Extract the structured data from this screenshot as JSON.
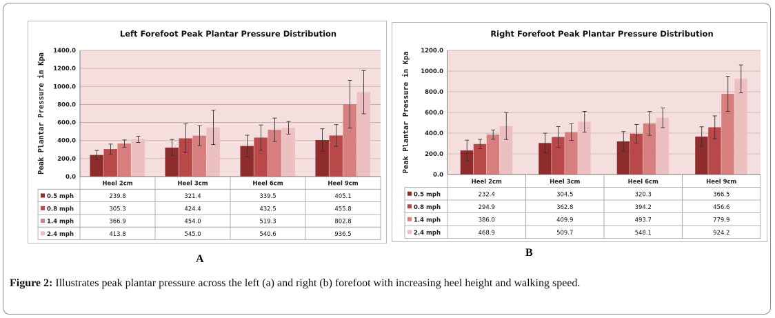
{
  "figure": {
    "caption_label": "Figure 2:",
    "caption_text": " Illustrates peak plantar pressure across the left (a) and right (b) forefoot with increasing heel height and walking speed.",
    "panel_a_letter": "A",
    "panel_b_letter": "B"
  },
  "colors": {
    "plot_bg": "#f4dede",
    "grid": "#c9a7a7",
    "series": [
      "#8e2b2b",
      "#b94848",
      "#d77e7e",
      "#ecc0c0"
    ]
  },
  "chart_data": [
    {
      "type": "bar",
      "title": "Left Forefoot Peak Plantar Pressure Distribution",
      "ylabel": "Peak Plantar Pressure in Kpa",
      "xlabel": "",
      "ylim": [
        0,
        1400
      ],
      "yticks": [
        "0.0",
        "200.0",
        "400.0",
        "600.0",
        "800.0",
        "1000.0",
        "1200.0",
        "1400.0"
      ],
      "grid": true,
      "legend": "data-table",
      "categories": [
        "Heel 2cm",
        "Heel 3cm",
        "Heel 6cm",
        "Heel 9cm"
      ],
      "series": [
        {
          "name": "0.5 mph",
          "values": [
            239.8,
            321.4,
            339.5,
            405.1
          ],
          "labels": [
            "239.8",
            "321.4",
            "339.5",
            "405.1"
          ],
          "errors": [
            50,
            90,
            120,
            125
          ]
        },
        {
          "name": "0.8 mph",
          "values": [
            305.3,
            424.4,
            432.5,
            455.8
          ],
          "labels": [
            "305.3",
            "424.4",
            "432.5",
            "455.8"
          ],
          "errors": [
            55,
            160,
            140,
            120
          ]
        },
        {
          "name": "1.4 mph",
          "values": [
            366.9,
            454.0,
            519.3,
            802.8
          ],
          "labels": [
            "366.9",
            "454.0",
            "519.3",
            "802.8"
          ],
          "errors": [
            40,
            110,
            130,
            265
          ]
        },
        {
          "name": "2.4 mph",
          "values": [
            413.8,
            545.0,
            540.6,
            936.5
          ],
          "labels": [
            "413.8",
            "545.0",
            "540.6",
            "936.5"
          ],
          "errors": [
            35,
            190,
            70,
            240
          ]
        }
      ]
    },
    {
      "type": "bar",
      "title": "Right Forefoot Peak Plantar Pressure Distribution",
      "ylabel": "Peak Plantar Pressure in Kpa",
      "xlabel": "",
      "ylim": [
        0,
        1200
      ],
      "yticks": [
        "0.0",
        "200.0",
        "400.0",
        "600.0",
        "800.0",
        "1000.0",
        "1200.0"
      ],
      "grid": true,
      "legend": "data-table",
      "categories": [
        "Heel 2cm",
        "Heel 3cm",
        "Heel 6cm",
        "Heel 9cm"
      ],
      "series": [
        {
          "name": "0.5 mph",
          "values": [
            232.4,
            304.5,
            320.3,
            366.5
          ],
          "labels": [
            "232.4",
            "304.5",
            "320.3",
            "366.5"
          ],
          "errors": [
            100,
            95,
            95,
            95
          ]
        },
        {
          "name": "0.8 mph",
          "values": [
            294.9,
            362.8,
            394.2,
            456.6
          ],
          "labels": [
            "294.9",
            "362.8",
            "394.2",
            "456.6"
          ],
          "errors": [
            45,
            100,
            90,
            110
          ]
        },
        {
          "name": "1.4 mph",
          "values": [
            386.0,
            409.9,
            493.7,
            779.9
          ],
          "labels": [
            "386.0",
            "409.9",
            "493.7",
            "779.9"
          ],
          "errors": [
            45,
            80,
            115,
            170
          ]
        },
        {
          "name": "2.4 mph",
          "values": [
            468.9,
            509.7,
            548.1,
            924.2
          ],
          "labels": [
            "468.9",
            "509.7",
            "548.1",
            "924.2"
          ],
          "errors": [
            130,
            100,
            95,
            135
          ]
        }
      ]
    }
  ]
}
